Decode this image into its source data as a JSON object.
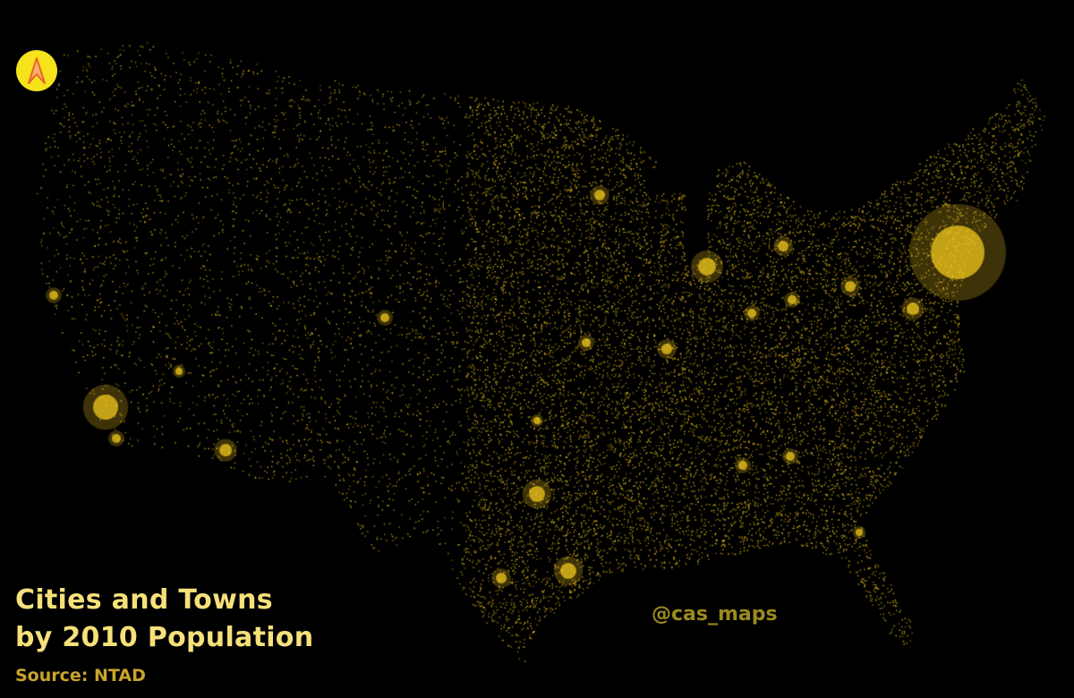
{
  "title": {
    "line1": "Cities and Towns",
    "line2": "by 2010 Population"
  },
  "source": "Source: NTAD",
  "credit": "@cas_maps",
  "north_arrow": {
    "icon": "north-arrow-icon"
  },
  "colors": {
    "background": "#000000",
    "dots": "#f2c81e",
    "title": "#f6e07a",
    "source": "#c9a52a",
    "credit": "#9c8a1e",
    "north_circle": "#f5e31c",
    "north_arrow": "#e8632a"
  }
}
